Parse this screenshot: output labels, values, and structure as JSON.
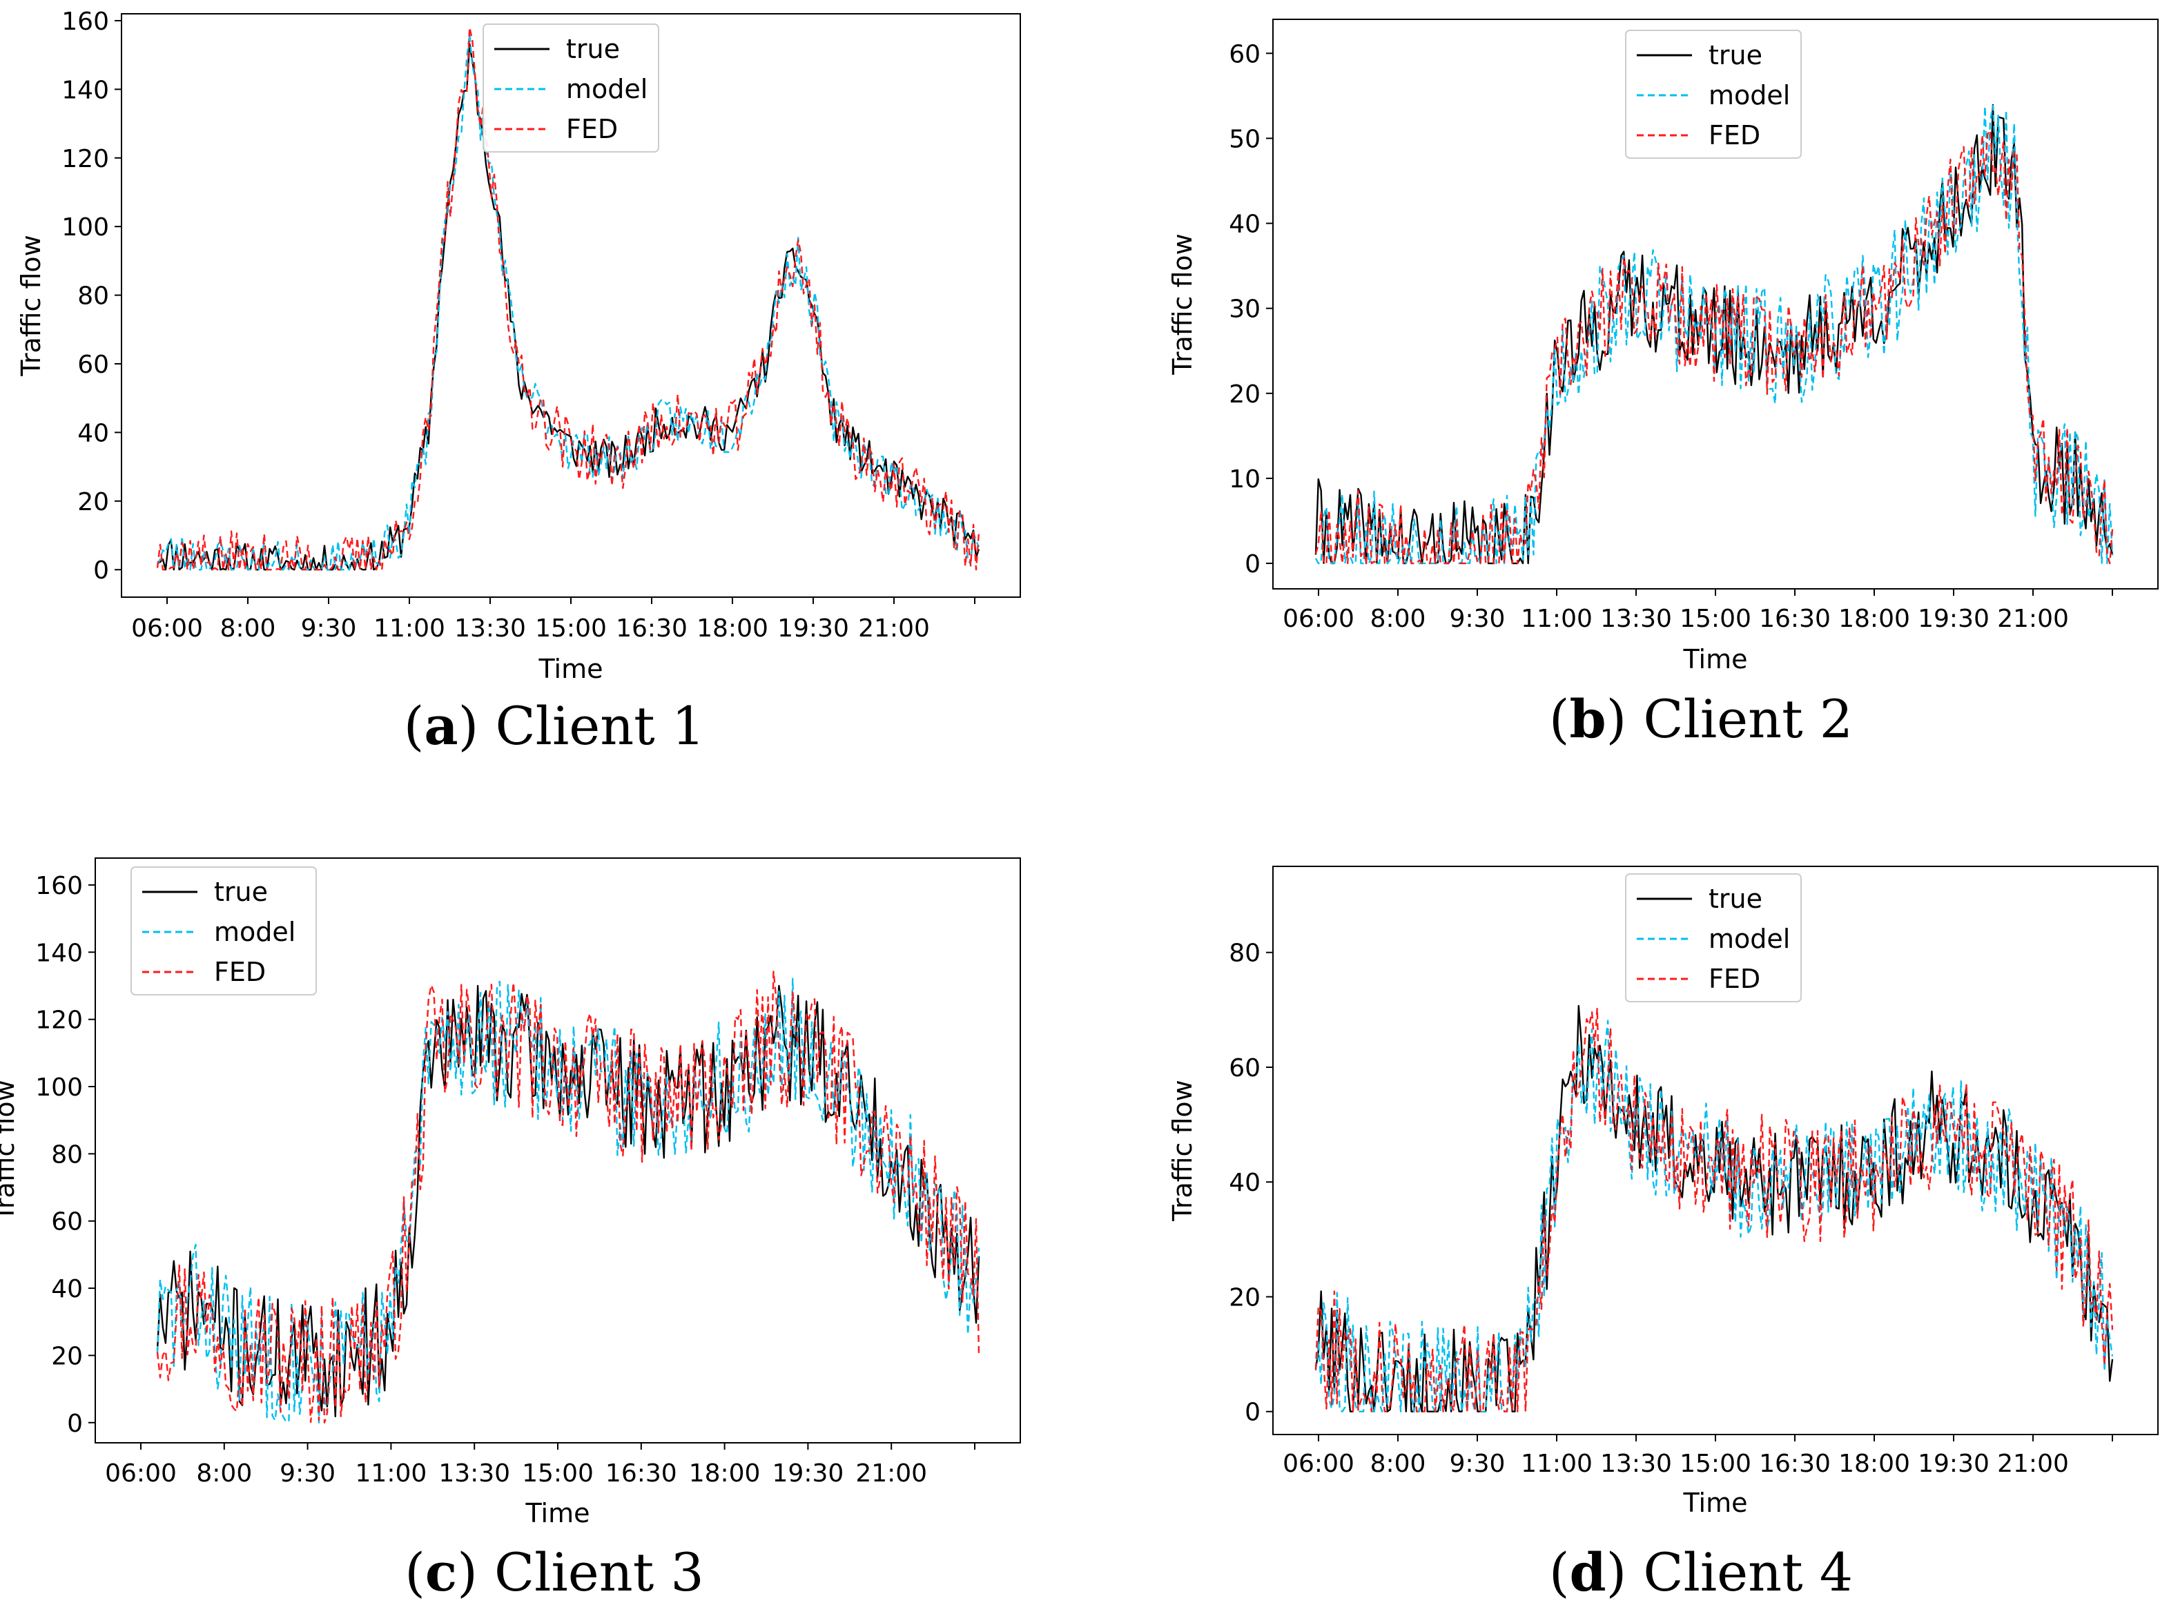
{
  "chart_data": [
    {
      "type": "line",
      "panel_letter": "a",
      "caption": "Client 1",
      "xlabel": "Time",
      "ylabel": "Traffic flow",
      "x_tick_labels": [
        "06:00",
        "8:00",
        "9:30",
        "11:00",
        "13:30",
        "15:00",
        "16:30",
        "18:00",
        "19:30",
        "21:00"
      ],
      "y_ticks": [
        0,
        20,
        40,
        60,
        80,
        100,
        120,
        140,
        160
      ],
      "ylim": [
        -8,
        162
      ],
      "legend_position": "top-center",
      "x_knots": [
        0,
        0.1,
        0.2,
        0.26,
        0.3,
        0.33,
        0.35,
        0.38,
        0.41,
        0.44,
        0.5,
        0.56,
        0.62,
        0.7,
        0.74,
        0.76,
        0.78,
        0.8,
        0.82,
        0.85,
        0.9,
        0.96,
        1.0
      ],
      "y_knots": [
        5,
        2,
        1,
        2,
        10,
        40,
        100,
        150,
        110,
        55,
        36,
        31,
        44,
        40,
        60,
        85,
        90,
        75,
        45,
        35,
        25,
        15,
        5
      ],
      "series": [
        {
          "name": "true",
          "color": "#000000",
          "dash": "",
          "noise": 6,
          "seed": 11
        },
        {
          "name": "model",
          "color": "#00bfef",
          "dash": "10,6",
          "noise": 7,
          "seed": 23
        },
        {
          "name": "FED",
          "color": "#ff1a1a",
          "dash": "10,6",
          "noise": 9,
          "seed": 37
        }
      ]
    },
    {
      "type": "line",
      "panel_letter": "b",
      "caption": "Client 2",
      "xlabel": "Time",
      "ylabel": "Traffic flow",
      "x_tick_labels": [
        "06:00",
        "8:00",
        "9:30",
        "11:00",
        "13:30",
        "15:00",
        "16:30",
        "18:00",
        "19:30",
        "21:00"
      ],
      "y_ticks": [
        0,
        10,
        20,
        30,
        40,
        50,
        60
      ],
      "ylim": [
        -3,
        64
      ],
      "legend_position": "top-center",
      "x_knots": [
        0,
        0.05,
        0.1,
        0.25,
        0.27,
        0.3,
        0.35,
        0.4,
        0.5,
        0.6,
        0.7,
        0.75,
        0.8,
        0.85,
        0.88,
        0.9,
        0.95,
        1.0
      ],
      "y_knots": [
        4,
        3,
        2,
        1,
        5,
        22,
        28,
        32,
        27,
        25,
        30,
        35,
        42,
        48,
        45,
        12,
        10,
        5
      ],
      "series": [
        {
          "name": "true",
          "color": "#000000",
          "dash": "",
          "noise": 6,
          "seed": 41
        },
        {
          "name": "model",
          "color": "#00bfef",
          "dash": "10,6",
          "noise": 7,
          "seed": 53
        },
        {
          "name": "FED",
          "color": "#ff1a1a",
          "dash": "10,6",
          "noise": 6,
          "seed": 67
        }
      ]
    },
    {
      "type": "line",
      "panel_letter": "c",
      "caption": "Client 3",
      "xlabel": "Time",
      "ylabel": "Traffic flow",
      "x_tick_labels": [
        "06:00",
        "8:00",
        "9:30",
        "11:00",
        "13:30",
        "15:00",
        "16:30",
        "18:00",
        "19:30",
        "21:00"
      ],
      "y_ticks": [
        0,
        20,
        40,
        60,
        80,
        100,
        120,
        140,
        160
      ],
      "ylim": [
        -6,
        168
      ],
      "legend_position": "top-left",
      "x_knots": [
        0,
        0.05,
        0.1,
        0.2,
        0.28,
        0.31,
        0.33,
        0.4,
        0.5,
        0.6,
        0.7,
        0.75,
        0.8,
        0.88,
        0.95,
        1.0
      ],
      "y_knots": [
        30,
        35,
        22,
        18,
        25,
        60,
        110,
        115,
        105,
        95,
        100,
        115,
        110,
        85,
        60,
        40
      ],
      "series": [
        {
          "name": "true",
          "color": "#000000",
          "dash": "",
          "noise": 18,
          "seed": 71
        },
        {
          "name": "model",
          "color": "#00bfef",
          "dash": "10,6",
          "noise": 20,
          "seed": 83
        },
        {
          "name": "FED",
          "color": "#ff1a1a",
          "dash": "10,6",
          "noise": 20,
          "seed": 97
        }
      ]
    },
    {
      "type": "line",
      "panel_letter": "d",
      "caption": "Client 4",
      "xlabel": "Time",
      "ylabel": "Traffic flow",
      "x_tick_labels": [
        "06:00",
        "8:00",
        "9:30",
        "11:00",
        "13:30",
        "15:00",
        "16:30",
        "18:00",
        "19:30",
        "21:00"
      ],
      "y_ticks": [
        0,
        20,
        40,
        60,
        80
      ],
      "ylim": [
        -4,
        95
      ],
      "legend_position": "top-center",
      "x_knots": [
        0,
        0.05,
        0.1,
        0.22,
        0.26,
        0.3,
        0.33,
        0.4,
        0.5,
        0.6,
        0.7,
        0.78,
        0.82,
        0.9,
        0.95,
        1.0
      ],
      "y_knots": [
        12,
        8,
        5,
        4,
        5,
        40,
        65,
        50,
        42,
        40,
        42,
        50,
        48,
        38,
        30,
        12
      ],
      "series": [
        {
          "name": "true",
          "color": "#000000",
          "dash": "",
          "noise": 10,
          "seed": 101
        },
        {
          "name": "model",
          "color": "#00bfef",
          "dash": "10,6",
          "noise": 11,
          "seed": 113
        },
        {
          "name": "FED",
          "color": "#ff1a1a",
          "dash": "10,6",
          "noise": 11,
          "seed": 127
        }
      ]
    }
  ]
}
